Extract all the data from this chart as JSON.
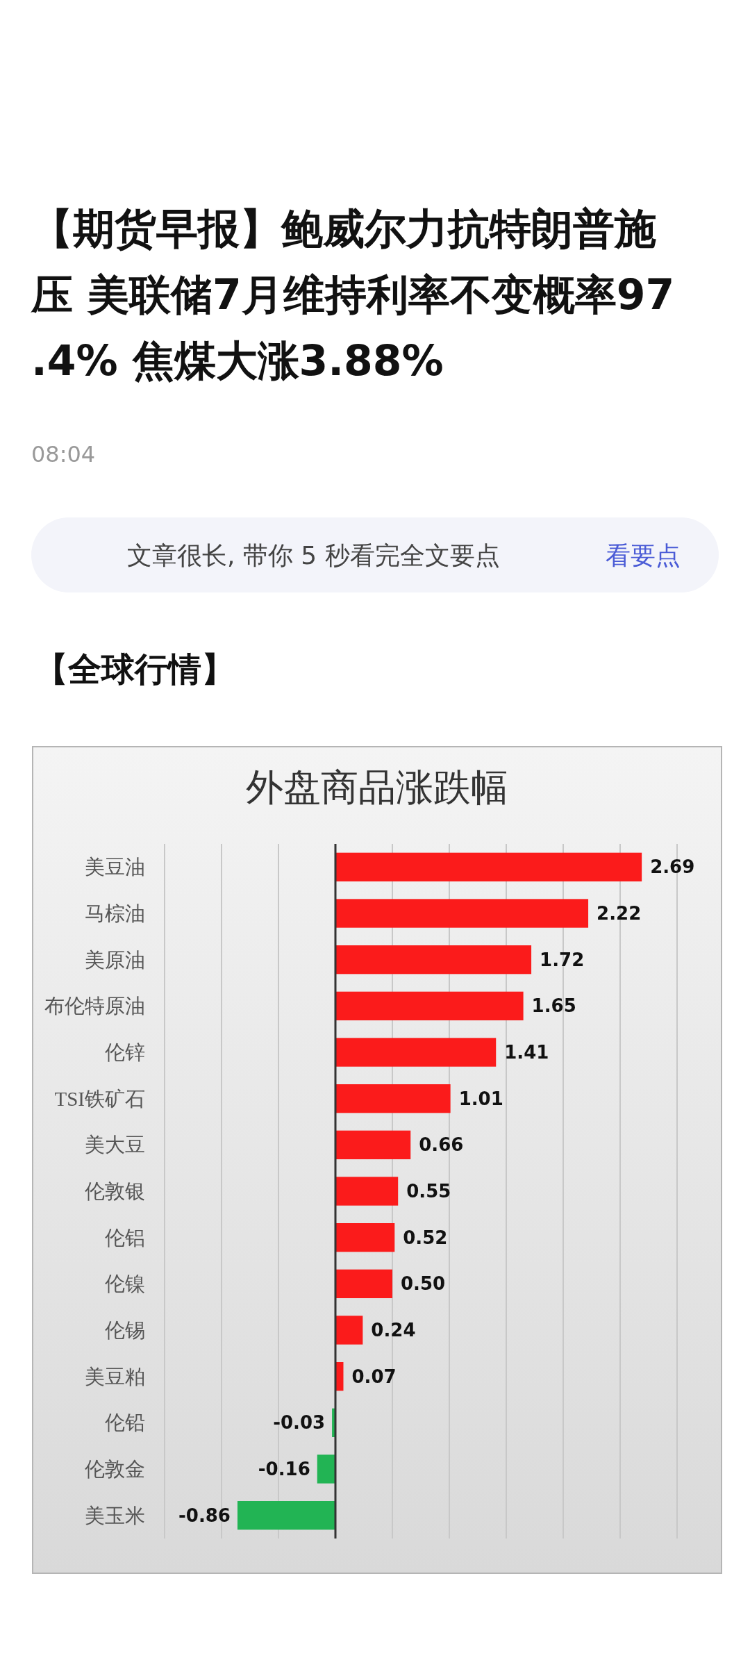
{
  "chart_data": {
    "type": "bar",
    "orientation": "horizontal",
    "title": "外盘商品涨跌幅",
    "annotations": [
      "【期货早报】鲍威尔力抗特朗普施压 美联储7月维持利率不变概率97.4% 焦煤大涨3.88%",
      "08:04",
      "文章很长, 带你 5 秒看完全文要点",
      "看要点",
      "【全球行情】"
    ],
    "categories": [
      "美豆油",
      "马棕油",
      "美原油",
      "布伦特原油",
      "伦锌",
      "TSI铁矿石",
      "美大豆",
      "伦敦银",
      "伦铝",
      "伦镍",
      "伦锡",
      "美豆粕",
      "伦铅",
      "伦敦金",
      "美玉米"
    ],
    "values": [
      2.69,
      2.22,
      1.72,
      1.65,
      1.41,
      1.01,
      0.66,
      0.55,
      0.52,
      0.5,
      0.24,
      0.07,
      -0.03,
      -0.16,
      -0.86
    ],
    "value_labels": [
      "2.69",
      "2.22",
      "1.72",
      "1.65",
      "1.41",
      "1.01",
      "0.66",
      "0.55",
      "0.52",
      "0.50",
      "0.24",
      "0.07",
      "-0.03",
      "-0.16",
      "-0.86"
    ],
    "colors": [
      "#fb1b1b",
      "#fb1b1b",
      "#fb1b1b",
      "#fb1b1b",
      "#fb1b1b",
      "#fb1b1b",
      "#fb1b1b",
      "#fb1b1b",
      "#fb1b1b",
      "#fb1b1b",
      "#fb1b1b",
      "#fb1b1b",
      "#22b454",
      "#22b454",
      "#22b454"
    ],
    "xlim": [
      -1.5,
      3.0
    ],
    "xticks": [
      {
        "value": -1.5,
        "label": null
      },
      {
        "value": -1.0,
        "label": null
      },
      {
        "value": -0.5,
        "label": null
      },
      {
        "value": 0,
        "label": null
      },
      {
        "value": 0.5,
        "label": null
      },
      {
        "value": 1.0,
        "label": null
      },
      {
        "value": 1.5,
        "label": null
      },
      {
        "value": 2.0,
        "label": null
      },
      {
        "value": 2.5,
        "label": null
      },
      {
        "value": 3.0,
        "label": null
      }
    ],
    "grid": "x"
  }
}
